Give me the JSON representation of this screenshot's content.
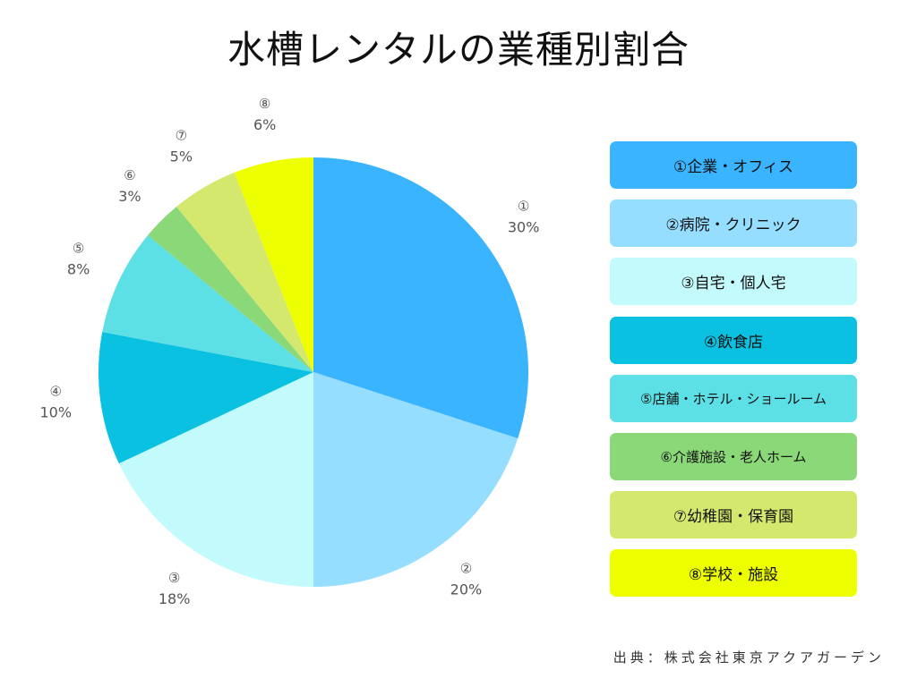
{
  "title": "水槽レンタルの業種別割合",
  "source": "出典：株式会社東京アクアガーデン",
  "chart_data": {
    "type": "pie",
    "title": "水槽レンタルの業種別割合",
    "slices": [
      {
        "marker": "①",
        "name": "①企業・オフィス",
        "value": 30,
        "label": "30%",
        "color": "#3AB4FF"
      },
      {
        "marker": "②",
        "name": "②病院・クリニック",
        "value": 20,
        "label": "20%",
        "color": "#96DEFF"
      },
      {
        "marker": "③",
        "name": "③自宅・個人宅",
        "value": 18,
        "label": "18%",
        "color": "#C3FBFC"
      },
      {
        "marker": "④",
        "name": "④飲食店",
        "value": 10,
        "label": "10%",
        "color": "#0BC1E1"
      },
      {
        "marker": "⑤",
        "name": "⑤店舗・ホテル・ショールーム",
        "value": 8,
        "label": "8%",
        "color": "#5DE0E5"
      },
      {
        "marker": "⑥",
        "name": "⑥介護施設・老人ホーム",
        "value": 3,
        "label": "3%",
        "color": "#8AD878"
      },
      {
        "marker": "⑦",
        "name": "⑦幼稚園・保育園",
        "value": 5,
        "label": "5%",
        "color": "#D4E86E"
      },
      {
        "marker": "⑧",
        "name": "⑧学校・施設",
        "value": 6,
        "label": "6%",
        "color": "#EEFF00"
      }
    ],
    "start_angle": "12 o'clock",
    "direction": "clockwise",
    "legend_position": "right"
  }
}
